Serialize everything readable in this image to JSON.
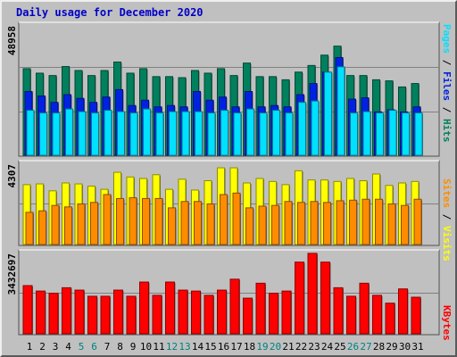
{
  "title": "Daily usage for December 2020",
  "colors": {
    "background": "#c0c0c0",
    "title": "#0000c8",
    "hits": "#00805c",
    "files": "#0022e0",
    "pages": "#00e0ff",
    "visits": "#ffff00",
    "sites": "#ff8c00",
    "kbytes": "#ff0000",
    "weekend_tick": "#008080"
  },
  "chart_data": [
    {
      "type": "bar",
      "panel": "hits-files-pages",
      "ymax_label": "48958",
      "ylim": [
        0,
        48958
      ],
      "categories": [
        "1",
        "2",
        "3",
        "4",
        "5",
        "6",
        "7",
        "8",
        "9",
        "10",
        "11",
        "12",
        "13",
        "14",
        "15",
        "16",
        "17",
        "18",
        "19",
        "20",
        "21",
        "22",
        "23",
        "24",
        "25",
        "26",
        "27",
        "28",
        "29",
        "30",
        "31"
      ],
      "weekend_categories": [
        "5",
        "6",
        "12",
        "13",
        "19",
        "20",
        "26",
        "27"
      ],
      "series": [
        {
          "name": "Hits",
          "values": [
            33000,
            31300,
            30400,
            33800,
            32300,
            30400,
            32300,
            35500,
            31300,
            33000,
            30000,
            30000,
            29600,
            32300,
            31300,
            33000,
            30400,
            35100,
            30000,
            30000,
            28800,
            31700,
            34200,
            38100,
            41500,
            30400,
            30400,
            28800,
            28400,
            26100,
            27400
          ]
        },
        {
          "name": "Files",
          "values": [
            24400,
            22700,
            20300,
            23200,
            21800,
            20300,
            22300,
            25100,
            19100,
            21100,
            18600,
            19100,
            18600,
            24400,
            21100,
            22300,
            18600,
            24400,
            18600,
            19100,
            18600,
            23200,
            27400,
            31700,
            37200,
            21500,
            22000,
            16700,
            17500,
            16700,
            18600
          ]
        },
        {
          "name": "Pages",
          "values": [
            17300,
            16300,
            16300,
            17800,
            16800,
            16300,
            17300,
            16800,
            16300,
            17800,
            16300,
            16800,
            16800,
            16800,
            16300,
            17300,
            16300,
            17800,
            16300,
            17300,
            16300,
            20300,
            20800,
            31700,
            33700,
            16300,
            16800,
            16300,
            17300,
            16300,
            16300
          ]
        }
      ]
    },
    {
      "type": "bar",
      "panel": "visits-sites",
      "ymax_label": "4307",
      "ylim": [
        0,
        4307
      ],
      "categories": [
        "1",
        "2",
        "3",
        "4",
        "5",
        "6",
        "7",
        "8",
        "9",
        "10",
        "11",
        "12",
        "13",
        "14",
        "15",
        "16",
        "17",
        "18",
        "19",
        "20",
        "21",
        "22",
        "23",
        "24",
        "25",
        "26",
        "27",
        "28",
        "29",
        "30",
        "31"
      ],
      "series": [
        {
          "name": "Visits",
          "values": [
            3250,
            3290,
            2920,
            3340,
            3290,
            3170,
            3000,
            3910,
            3660,
            3580,
            3780,
            3000,
            3540,
            2960,
            3460,
            4150,
            4150,
            3340,
            3580,
            3420,
            3250,
            3990,
            3500,
            3500,
            3420,
            3580,
            3460,
            3820,
            3210,
            3340,
            3420
          ]
        },
        {
          "name": "Sites",
          "values": [
            1770,
            1850,
            2140,
            2060,
            2220,
            2300,
            2720,
            2510,
            2550,
            2510,
            2510,
            2010,
            2350,
            2350,
            2220,
            2720,
            2800,
            2010,
            2100,
            2140,
            2350,
            2300,
            2350,
            2300,
            2390,
            2420,
            2470,
            2470,
            2220,
            2140,
            2470
          ]
        }
      ]
    },
    {
      "type": "bar",
      "panel": "kbytes",
      "ymax_label": "3432697",
      "ylim": [
        0,
        3432697
      ],
      "categories": [
        "1",
        "2",
        "3",
        "4",
        "5",
        "6",
        "7",
        "8",
        "9",
        "10",
        "11",
        "12",
        "13",
        "14",
        "15",
        "16",
        "17",
        "18",
        "19",
        "20",
        "21",
        "22",
        "23",
        "24",
        "25",
        "26",
        "27",
        "28",
        "29",
        "30",
        "31"
      ],
      "series": [
        {
          "name": "KBytes",
          "values": [
            2070000,
            1840000,
            1750000,
            1980000,
            1880000,
            1620000,
            1620000,
            1880000,
            1620000,
            2220000,
            1660000,
            2220000,
            1880000,
            1840000,
            1660000,
            1880000,
            2340000,
            1540000,
            2170000,
            1750000,
            1840000,
            3060000,
            3430000,
            3060000,
            1980000,
            1620000,
            2170000,
            1660000,
            1330000,
            1930000,
            1580000
          ]
        }
      ]
    }
  ]
}
